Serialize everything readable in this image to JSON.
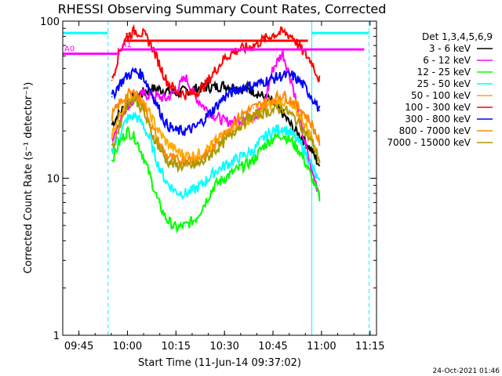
{
  "chart_data": {
    "type": "line",
    "title": "RHESSI Observing Summary Count Rates, Corrected",
    "xlabel": "Start Time (11-Jun-14 09:37:02)",
    "ylabel": "Corrected Count Rate (s⁻¹ detector⁻¹)",
    "ylog": true,
    "ylim": [
      1,
      100
    ],
    "xlim": [
      9.6667,
      11.2833
    ],
    "xtick_labels": [
      "09:45",
      "10:00",
      "10:15",
      "10:30",
      "10:45",
      "11:00",
      "11:15"
    ],
    "xticks": [
      9.75,
      10.0,
      10.25,
      10.5,
      10.75,
      11.0,
      11.25
    ],
    "ytick_labels": [
      "1",
      "10",
      "100"
    ],
    "yticks": [
      1,
      10,
      100
    ],
    "legend_title": "Det 1,3,4,5,6,9",
    "legend_position": "right",
    "date_stamp": "24-Oct-2021 01:46",
    "vertical_lines": [
      {
        "x": 9.9,
        "style": "dashed",
        "color": "#00ffff"
      },
      {
        "x": 10.95,
        "style": "solid",
        "color": "#00ffff"
      },
      {
        "x": 11.245,
        "style": "dashed",
        "color": "#00ffff"
      }
    ],
    "attenuator_bars": [
      {
        "label": "F",
        "x0": 9.98,
        "x1": 10.93,
        "y": 75,
        "color": "#ff0000"
      },
      {
        "label": "A0",
        "x0": 9.6667,
        "x1": 9.96,
        "y": 62,
        "color": "#ff00ff"
      },
      {
        "label": "A1",
        "x0": 9.96,
        "x1": 11.22,
        "y": 66,
        "color": "#ff00ff"
      },
      {
        "label": "",
        "x0": 9.6667,
        "x1": 9.9,
        "y": 84,
        "color": "#00ffff"
      },
      {
        "label": "",
        "x0": 10.95,
        "x1": 11.245,
        "y": 84,
        "color": "#00ffff"
      }
    ],
    "x": [
      9.92,
      9.96,
      10.0,
      10.04,
      10.08,
      10.12,
      10.16,
      10.2,
      10.25,
      10.3,
      10.35,
      10.4,
      10.45,
      10.5,
      10.55,
      10.6,
      10.65,
      10.7,
      10.75,
      10.8,
      10.85,
      10.9,
      10.95,
      10.99
    ],
    "series": [
      {
        "name": "3 - 6 keV",
        "color": "#000000",
        "values": [
          22,
          26,
          30,
          33,
          35,
          37,
          37,
          36,
          35,
          36,
          37,
          38,
          38,
          39,
          38,
          37,
          36,
          33,
          30,
          26,
          21,
          18,
          15,
          12
        ]
      },
      {
        "name": "6 - 12 keV",
        "color": "#ff00ff",
        "values": [
          18,
          23,
          29,
          33,
          34,
          34,
          33,
          32,
          36,
          44,
          33,
          28,
          25,
          23,
          23,
          24,
          25,
          28,
          50,
          63,
          40,
          20,
          11,
          8
        ]
      },
      {
        "name": "12 - 25 keV",
        "color": "#00ff00",
        "values": [
          13,
          17,
          20,
          18,
          14,
          10,
          7,
          5.5,
          4.8,
          5.0,
          5.5,
          7,
          9,
          10,
          11,
          12,
          13,
          16,
          18,
          19,
          17,
          14,
          10,
          7.5
        ]
      },
      {
        "name": "25 - 50 keV",
        "color": "#00ffff",
        "values": [
          15,
          19,
          24,
          25,
          22,
          17,
          12,
          9.5,
          8.2,
          8.0,
          8.5,
          9.5,
          11,
          12,
          13,
          14,
          15,
          18,
          20,
          21,
          19,
          16,
          12,
          9
        ]
      },
      {
        "name": "50 - 100 keV",
        "color": "#ffaa00",
        "values": [
          19,
          25,
          32,
          34,
          30,
          25,
          20,
          17,
          15,
          14,
          14,
          15,
          17,
          19,
          21,
          22,
          24,
          27,
          30,
          31,
          28,
          24,
          18,
          13
        ]
      },
      {
        "name": "100 - 300 keV",
        "color": "#ff0000",
        "values": [
          42,
          65,
          80,
          87,
          83,
          72,
          55,
          42,
          36,
          34,
          35,
          39,
          48,
          58,
          64,
          67,
          70,
          76,
          82,
          85,
          80,
          65,
          55,
          42
        ]
      },
      {
        "name": "300 - 800 keV",
        "color": "#0000ff",
        "values": [
          33,
          40,
          45,
          48,
          45,
          36,
          28,
          22,
          20,
          20,
          21,
          24,
          28,
          33,
          36,
          38,
          39,
          41,
          43,
          45,
          45,
          40,
          33,
          27
        ]
      },
      {
        "name": "800 - 7000 keV",
        "color": "#ff8800",
        "values": [
          25,
          30,
          34,
          35,
          30,
          22,
          17,
          14,
          13,
          13,
          13,
          14,
          16,
          19,
          23,
          26,
          28,
          30,
          32,
          34,
          31,
          27,
          22,
          17
        ]
      },
      {
        "name": "7000 - 15000 keV",
        "color": "#aa9900",
        "values": [
          15,
          22,
          30,
          32,
          27,
          20,
          16,
          13,
          12,
          12,
          12,
          13,
          15,
          17,
          20,
          23,
          25,
          26,
          27,
          28,
          25,
          21,
          17,
          13
        ]
      }
    ]
  }
}
